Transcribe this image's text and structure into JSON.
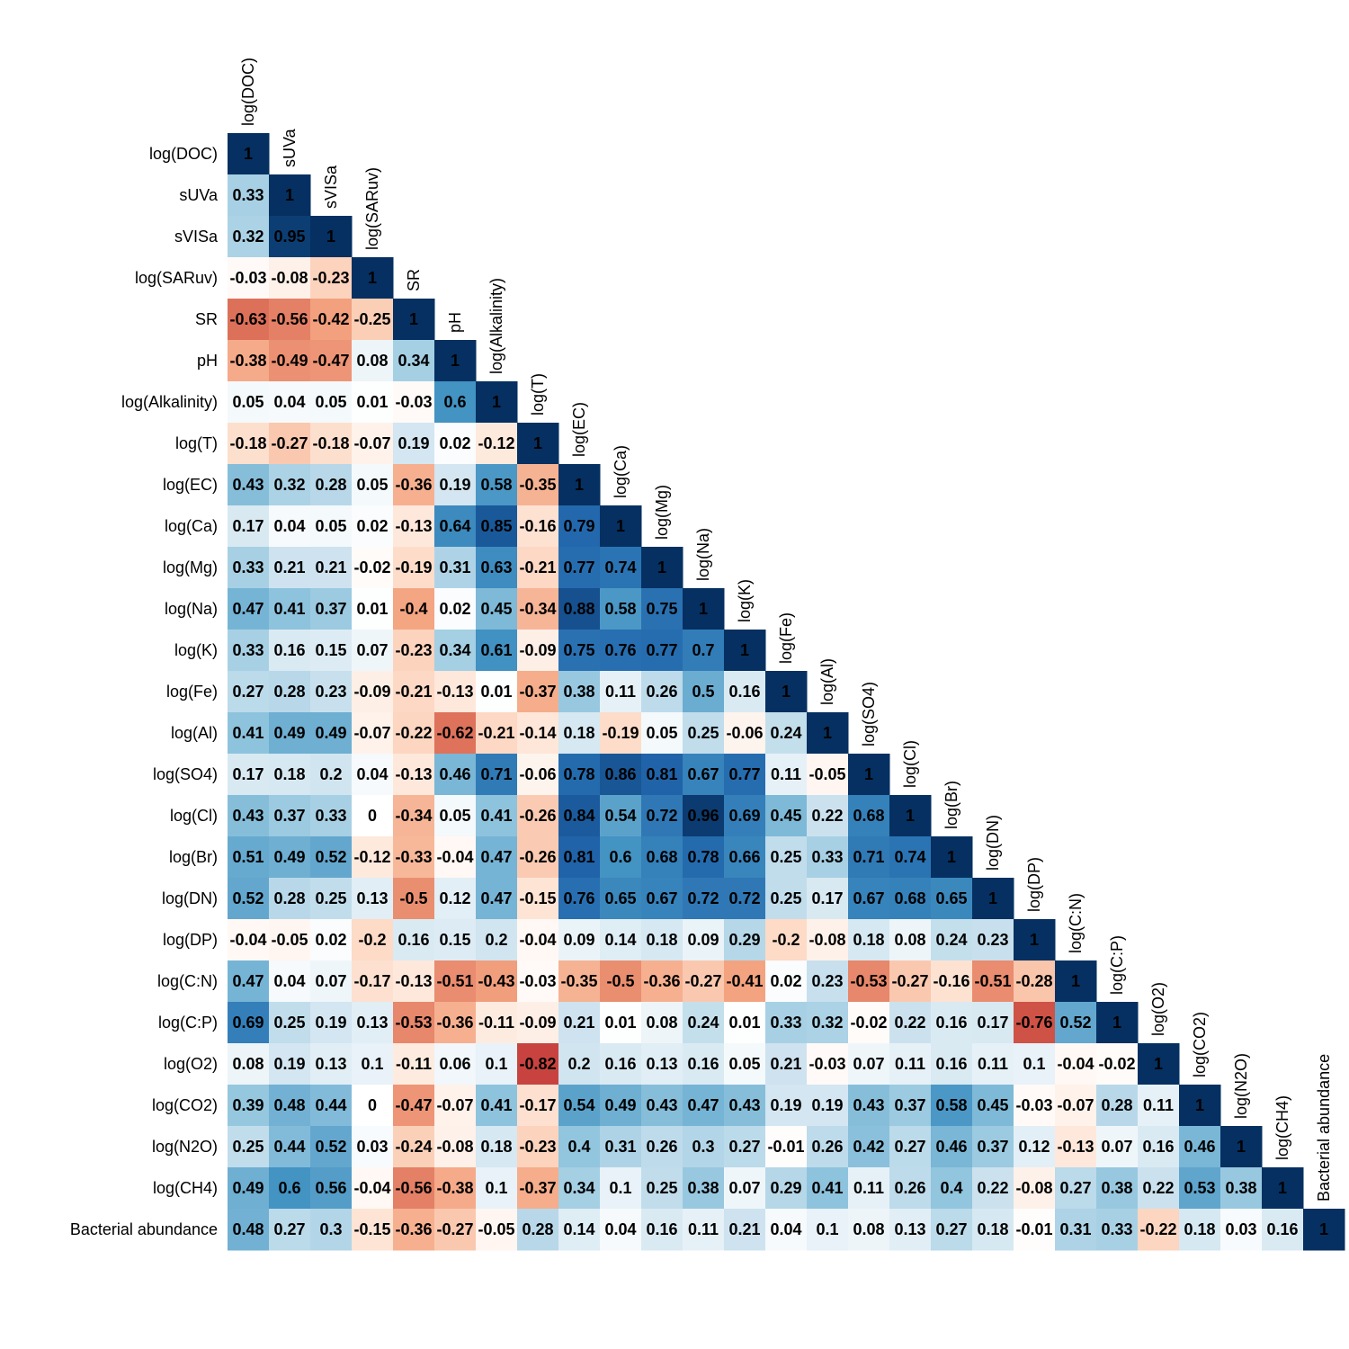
{
  "chart_data": {
    "type": "heatmap",
    "variables": [
      "log(DOC)",
      "sUVa",
      "sVISa",
      "log(SARuv)",
      "SR",
      "pH",
      "log(Alkalinity)",
      "log(T)",
      "log(EC)",
      "log(Ca)",
      "log(Mg)",
      "log(Na)",
      "log(K)",
      "log(Fe)",
      "log(Al)",
      "log(SO4)",
      "log(Cl)",
      "log(Br)",
      "log(DN)",
      "log(DP)",
      "log(C:N)",
      "log(C:P)",
      "log(O2)",
      "log(CO2)",
      "log(N2O)",
      "log(CH4)",
      "Bacterial abundance"
    ],
    "values": [
      [
        "1"
      ],
      [
        "0.33",
        "1"
      ],
      [
        "0.32",
        "0.95",
        "1"
      ],
      [
        "-0.03",
        "-0.08",
        "-0.23",
        "1"
      ],
      [
        "-0.63",
        "-0.56",
        "-0.42",
        "-0.25",
        "1"
      ],
      [
        "-0.38",
        "-0.49",
        "-0.47",
        "0.08",
        "0.34",
        "1"
      ],
      [
        "0.05",
        "0.04",
        "0.05",
        "0.01",
        "-0.03",
        "0.6",
        "1"
      ],
      [
        "-0.18",
        "-0.27",
        "-0.18",
        "-0.07",
        "0.19",
        "0.02",
        "-0.12",
        "1"
      ],
      [
        "0.43",
        "0.32",
        "0.28",
        "0.05",
        "-0.36",
        "0.19",
        "0.58",
        "-0.35",
        "1"
      ],
      [
        "0.17",
        "0.04",
        "0.05",
        "0.02",
        "-0.13",
        "0.64",
        "0.85",
        "-0.16",
        "0.79",
        "1"
      ],
      [
        "0.33",
        "0.21",
        "0.21",
        "-0.02",
        "-0.19",
        "0.31",
        "0.63",
        "-0.21",
        "0.77",
        "0.74",
        "1"
      ],
      [
        "0.47",
        "0.41",
        "0.37",
        "0.01",
        "-0.4",
        "0.02",
        "0.45",
        "-0.34",
        "0.88",
        "0.58",
        "0.75",
        "1"
      ],
      [
        "0.33",
        "0.16",
        "0.15",
        "0.07",
        "-0.23",
        "0.34",
        "0.61",
        "-0.09",
        "0.75",
        "0.76",
        "0.77",
        "0.7",
        "1"
      ],
      [
        "0.27",
        "0.28",
        "0.23",
        "-0.09",
        "-0.21",
        "-0.13",
        "0.01",
        "-0.37",
        "0.38",
        "0.11",
        "0.26",
        "0.5",
        "0.16",
        "1"
      ],
      [
        "0.41",
        "0.49",
        "0.49",
        "-0.07",
        "-0.22",
        "-0.62",
        "-0.21",
        "-0.14",
        "0.18",
        "-0.19",
        "0.05",
        "0.25",
        "-0.06",
        "0.24",
        "1"
      ],
      [
        "0.17",
        "0.18",
        "0.2",
        "0.04",
        "-0.13",
        "0.46",
        "0.71",
        "-0.06",
        "0.78",
        "0.86",
        "0.81",
        "0.67",
        "0.77",
        "0.11",
        "-0.05",
        "1"
      ],
      [
        "0.43",
        "0.37",
        "0.33",
        "0",
        "-0.34",
        "0.05",
        "0.41",
        "-0.26",
        "0.84",
        "0.54",
        "0.72",
        "0.96",
        "0.69",
        "0.45",
        "0.22",
        "0.68",
        "1"
      ],
      [
        "0.51",
        "0.49",
        "0.52",
        "-0.12",
        "-0.33",
        "-0.04",
        "0.47",
        "-0.26",
        "0.81",
        "0.6",
        "0.68",
        "0.78",
        "0.66",
        "0.25",
        "0.33",
        "0.71",
        "0.74",
        "1"
      ],
      [
        "0.52",
        "0.28",
        "0.25",
        "0.13",
        "-0.5",
        "0.12",
        "0.47",
        "-0.15",
        "0.76",
        "0.65",
        "0.67",
        "0.72",
        "0.72",
        "0.25",
        "0.17",
        "0.67",
        "0.68",
        "0.65",
        "1"
      ],
      [
        "-0.04",
        "-0.05",
        "0.02",
        "-0.2",
        "0.16",
        "0.15",
        "0.2",
        "-0.04",
        "0.09",
        "0.14",
        "0.18",
        "0.09",
        "0.29",
        "-0.2",
        "-0.08",
        "0.18",
        "0.08",
        "0.24",
        "0.23",
        "1"
      ],
      [
        "0.47",
        "0.04",
        "0.07",
        "-0.17",
        "-0.13",
        "-0.51",
        "-0.43",
        "-0.03",
        "-0.35",
        "-0.5",
        "-0.36",
        "-0.27",
        "-0.41",
        "0.02",
        "0.23",
        "-0.53",
        "-0.27",
        "-0.16",
        "-0.51",
        "-0.28",
        "1"
      ],
      [
        "0.69",
        "0.25",
        "0.19",
        "0.13",
        "-0.53",
        "-0.36",
        "-0.11",
        "-0.09",
        "0.21",
        "0.01",
        "0.08",
        "0.24",
        "0.01",
        "0.33",
        "0.32",
        "-0.02",
        "0.22",
        "0.16",
        "0.17",
        "-0.76",
        "0.52",
        "1"
      ],
      [
        "0.08",
        "0.19",
        "0.13",
        "0.1",
        "-0.11",
        "0.06",
        "0.1",
        "-0.82",
        "0.2",
        "0.16",
        "0.13",
        "0.16",
        "0.05",
        "0.21",
        "-0.03",
        "0.07",
        "0.11",
        "0.16",
        "0.11",
        "0.1",
        "-0.04",
        "-0.02",
        "1"
      ],
      [
        "0.39",
        "0.48",
        "0.44",
        "0",
        "-0.47",
        "-0.07",
        "0.41",
        "-0.17",
        "0.54",
        "0.49",
        "0.43",
        "0.47",
        "0.43",
        "0.19",
        "0.19",
        "0.43",
        "0.37",
        "0.58",
        "0.45",
        "-0.03",
        "-0.07",
        "0.28",
        "0.11",
        "1"
      ],
      [
        "0.25",
        "0.44",
        "0.52",
        "0.03",
        "-0.24",
        "-0.08",
        "0.18",
        "-0.23",
        "0.4",
        "0.31",
        "0.26",
        "0.3",
        "0.27",
        "-0.01",
        "0.26",
        "0.42",
        "0.27",
        "0.46",
        "0.37",
        "0.12",
        "-0.13",
        "0.07",
        "0.16",
        "0.46",
        "1"
      ],
      [
        "0.49",
        "0.6",
        "0.56",
        "-0.04",
        "-0.56",
        "-0.38",
        "0.1",
        "-0.37",
        "0.34",
        "0.1",
        "0.25",
        "0.38",
        "0.07",
        "0.29",
        "0.41",
        "0.11",
        "0.26",
        "0.4",
        "0.22",
        "-0.08",
        "0.27",
        "0.38",
        "0.22",
        "0.53",
        "0.38",
        "1"
      ],
      [
        "0.48",
        "0.27",
        "0.3",
        "-0.15",
        "-0.36",
        "-0.27",
        "-0.05",
        "0.28",
        "0.14",
        "0.04",
        "0.16",
        "0.11",
        "0.21",
        "0.04",
        "0.1",
        "0.08",
        "0.13",
        "0.27",
        "0.18",
        "-0.01",
        "0.31",
        "0.33",
        "-0.22",
        "0.18",
        "0.03",
        "0.16",
        "1"
      ]
    ],
    "color_scale": {
      "negative": "#b2182b",
      "zero": "#ffffff",
      "positive": "#053061"
    },
    "value_range": [
      -1,
      1
    ],
    "text_color": "#000000",
    "layout": "lower-triangle",
    "column_labels_rotated": true
  }
}
